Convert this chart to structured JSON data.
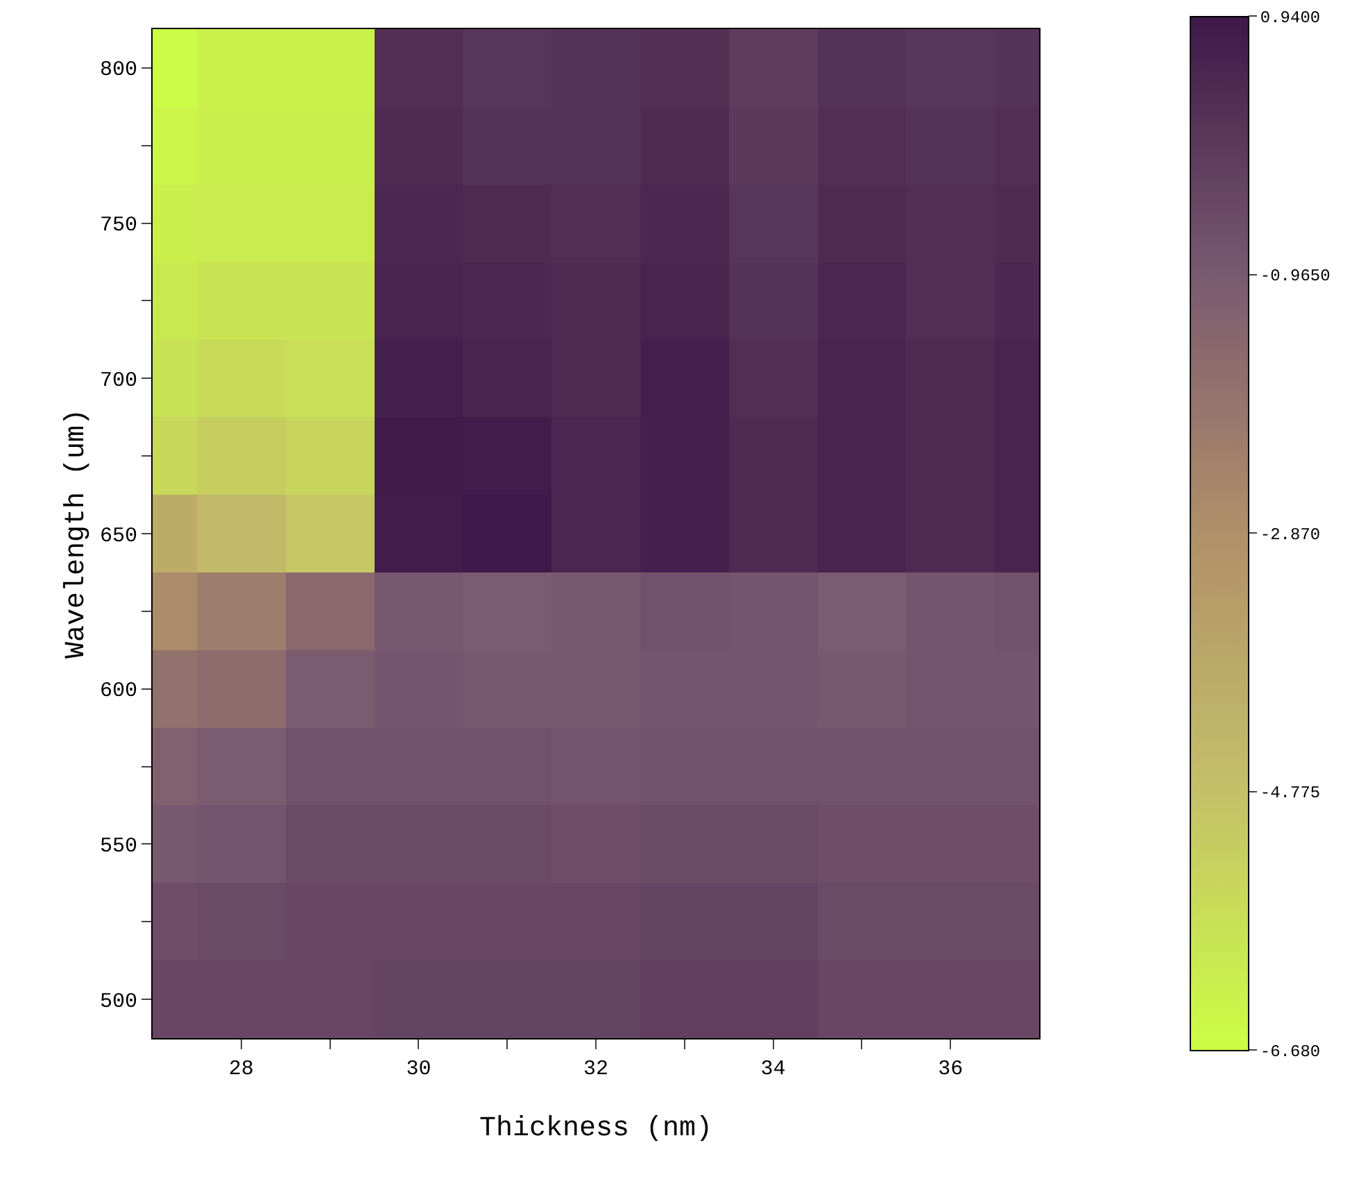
{
  "chart_data": {
    "type": "heatmap",
    "xlabel": "Thickness (nm)",
    "ylabel": "Wavelength (um)",
    "x": [
      27,
      28,
      29,
      30,
      31,
      32,
      33,
      34,
      35,
      36,
      37
    ],
    "y_categories": [
      "800",
      null,
      "750",
      null,
      "700",
      null,
      "650",
      null,
      "600",
      null,
      "550",
      null,
      "500"
    ],
    "cells": [
      [
        -6.6,
        -6.3,
        -6.3,
        0.3,
        0.1,
        0.2,
        0.3,
        -0.1,
        0.2,
        0.1,
        0.2
      ],
      [
        -6.4,
        -6.2,
        -6.2,
        0.4,
        0.2,
        0.2,
        0.4,
        0.0,
        0.3,
        0.2,
        0.3
      ],
      [
        -6.2,
        -6.1,
        -6.1,
        0.5,
        0.4,
        0.3,
        0.5,
        0.1,
        0.4,
        0.3,
        0.4
      ],
      [
        -6.0,
        -5.9,
        -5.9,
        0.6,
        0.5,
        0.4,
        0.6,
        0.2,
        0.5,
        0.3,
        0.5
      ],
      [
        -5.8,
        -5.6,
        -5.7,
        0.7,
        0.6,
        0.4,
        0.7,
        0.3,
        0.6,
        0.4,
        0.6
      ],
      [
        -5.5,
        -5.2,
        -5.4,
        0.85,
        0.8,
        0.5,
        0.7,
        0.4,
        0.6,
        0.4,
        0.6
      ],
      [
        -4.0,
        -4.5,
        -5.0,
        0.8,
        0.9,
        0.5,
        0.7,
        0.4,
        0.6,
        0.4,
        0.6
      ],
      [
        -2.7,
        -2.2,
        -1.5,
        -0.9,
        -1.0,
        -0.9,
        -0.7,
        -0.8,
        -1.0,
        -0.8,
        -0.7
      ],
      [
        -1.8,
        -1.6,
        -1.0,
        -0.8,
        -0.9,
        -0.9,
        -0.8,
        -0.8,
        -0.9,
        -0.8,
        -0.8
      ],
      [
        -1.2,
        -1.0,
        -0.7,
        -0.7,
        -0.7,
        -0.8,
        -0.7,
        -0.7,
        -0.7,
        -0.7,
        -0.7
      ],
      [
        -0.9,
        -0.8,
        -0.5,
        -0.5,
        -0.5,
        -0.6,
        -0.5,
        -0.5,
        -0.6,
        -0.6,
        -0.6
      ],
      [
        -0.6,
        -0.5,
        -0.4,
        -0.4,
        -0.4,
        -0.4,
        -0.3,
        -0.3,
        -0.5,
        -0.5,
        -0.5
      ],
      [
        -0.4,
        -0.4,
        -0.4,
        -0.3,
        -0.3,
        -0.3,
        -0.2,
        -0.2,
        -0.4,
        -0.4,
        -0.4
      ]
    ],
    "colors": [
      "#ccff44",
      "#c4c068",
      "#b09068",
      "#7a5a70",
      "#3e1848"
    ],
    "xlim": [
      27,
      37
    ],
    "xticks": [
      28,
      {
        "value": 29,
        "label": null
      },
      30,
      {
        "value": 31,
        "label": null
      },
      32,
      {
        "value": 33,
        "label": null
      },
      34,
      {
        "value": 35,
        "label": null
      },
      36
    ],
    "clim": [
      -6.68,
      0.94
    ],
    "cticks": [
      {
        "value": 0.94,
        "label": "0.9400"
      },
      {
        "value": -0.965,
        "label": "-0.9650"
      },
      {
        "value": -2.87,
        "label": "-2.870"
      },
      {
        "value": -4.775,
        "label": "-4.775"
      },
      {
        "value": -6.68,
        "label": "-6.680"
      }
    ]
  }
}
